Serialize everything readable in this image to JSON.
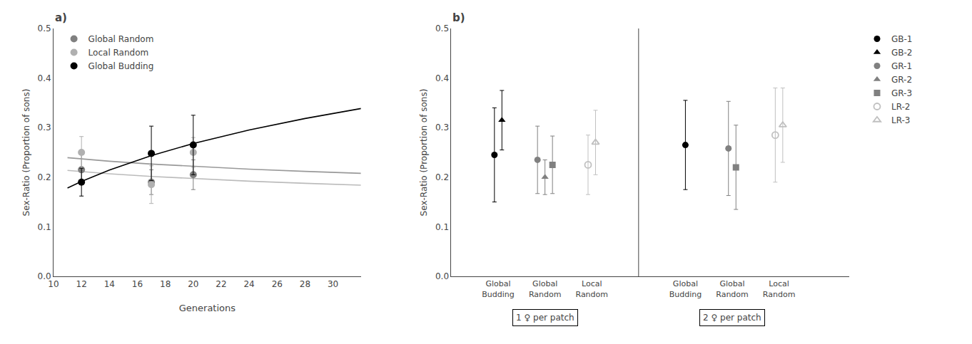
{
  "chart_data": [
    {
      "type": "scatter",
      "title": "a)",
      "x_label": "Generations",
      "y_label": "Sex-Ratio (Proportion of sons)",
      "xlim": [
        10,
        32
      ],
      "ylim": [
        0,
        0.5
      ],
      "xticks": [
        10,
        12,
        14,
        16,
        18,
        20,
        22,
        24,
        26,
        28,
        30
      ],
      "yticks": [
        {
          "value": 0,
          "label": "0.0"
        },
        0.1,
        0.2,
        0.3,
        0.4,
        0.5
      ],
      "grid": false,
      "legend": "upper left",
      "series": [
        {
          "type": "line",
          "color": "#bbbbbb",
          "x": [
            11,
            12,
            14,
            17,
            20,
            24,
            28,
            32
          ],
          "values": [
            0.2137,
            0.2113,
            0.207,
            0.2016,
            0.1971,
            0.192,
            0.1877,
            0.184
          ]
        },
        {
          "type": "line",
          "color": "#999999",
          "x": [
            11,
            12,
            14,
            17,
            20,
            24,
            28,
            32
          ],
          "values": [
            0.2394,
            0.2368,
            0.2322,
            0.2265,
            0.2217,
            0.2163,
            0.2118,
            0.2078
          ]
        },
        {
          "type": "line",
          "color": "#000000",
          "x": [
            11,
            12,
            14,
            17,
            20,
            24,
            28,
            32
          ],
          "values": [
            0.1783,
            0.1914,
            0.2145,
            0.2436,
            0.268,
            0.2953,
            0.3184,
            0.3385
          ]
        },
        {
          "name": "Global Random",
          "color": "#808080",
          "marker": "circle",
          "x": [
            12,
            17,
            20
          ],
          "values": [
            0.215,
            0.19,
            0.205
          ],
          "errors": [
            0.03,
            0.025,
            0.03
          ]
        },
        {
          "name": "Local Random",
          "color": "#b0b0b0",
          "marker": "circle",
          "x": [
            12,
            17,
            20
          ],
          "values": [
            0.25,
            0.185,
            0.25
          ],
          "errors": [
            0.032,
            0.038,
            0.03
          ]
        },
        {
          "name": "Global Budding",
          "color": "#000000",
          "marker": "circle",
          "x": [
            12,
            17,
            20
          ],
          "values": [
            0.19,
            0.248,
            0.265
          ],
          "errors": [
            0.028,
            0.055,
            0.06
          ]
        }
      ]
    },
    {
      "type": "scatter",
      "title": "b)",
      "y_label": "Sex-Ratio (Proportion of sons)",
      "categories": [
        "Global\nBudding",
        "Global\nRandom",
        "Local\nRandom",
        "Global\nBudding",
        "Global\nRandom",
        "Local\nRandom"
      ],
      "ylim": [
        0,
        0.5
      ],
      "yticks": [
        {
          "value": 0,
          "label": "0.0"
        },
        0.1,
        0.2,
        0.3,
        0.4,
        0.5
      ],
      "grid": false,
      "legend": "right",
      "annotations": [
        {
          "text": "1 ♀ per patch",
          "categories": [
            0,
            1,
            2
          ]
        },
        {
          "text": "2 ♀ per patch",
          "categories": [
            3,
            4,
            5
          ]
        }
      ],
      "series": [
        {
          "name": "GB-1",
          "color": "#000000",
          "marker": "circle",
          "values": [
            0.245,
            null,
            null,
            0.265,
            null,
            null
          ],
          "errors": [
            0.095,
            null,
            null,
            0.09,
            null,
            null
          ]
        },
        {
          "name": "GB-2",
          "color": "#000000",
          "marker": "triangle-up",
          "values": [
            0.315,
            null,
            null,
            null,
            null,
            null
          ],
          "errors": [
            0.06,
            null,
            null,
            null,
            null,
            null
          ]
        },
        {
          "name": "GR-1",
          "color": "#808080",
          "marker": "circle",
          "values": [
            null,
            0.235,
            null,
            null,
            0.258,
            null
          ],
          "errors": [
            null,
            0.068,
            null,
            null,
            0.095,
            null
          ]
        },
        {
          "name": "GR-2",
          "color": "#808080",
          "marker": "triangle-up",
          "values": [
            null,
            0.2,
            null,
            null,
            null,
            null
          ],
          "errors": [
            null,
            0.035,
            null,
            null,
            null,
            null
          ]
        },
        {
          "name": "GR-3",
          "color": "#808080",
          "marker": "square",
          "values": [
            null,
            0.225,
            null,
            null,
            0.22,
            null
          ],
          "errors": [
            null,
            0.058,
            null,
            null,
            0.085,
            null
          ]
        },
        {
          "name": "LR-2",
          "color": "#c0c0c0",
          "marker": "circle-open",
          "values": [
            null,
            null,
            0.225,
            null,
            null,
            0.285
          ],
          "errors": [
            null,
            null,
            0.06,
            null,
            null,
            0.095
          ]
        },
        {
          "name": "LR-3",
          "color": "#c0c0c0",
          "marker": "triangle-up-open",
          "values": [
            null,
            null,
            0.27,
            null,
            null,
            0.305
          ],
          "errors": [
            null,
            null,
            0.065,
            null,
            null,
            0.075
          ]
        }
      ]
    }
  ]
}
